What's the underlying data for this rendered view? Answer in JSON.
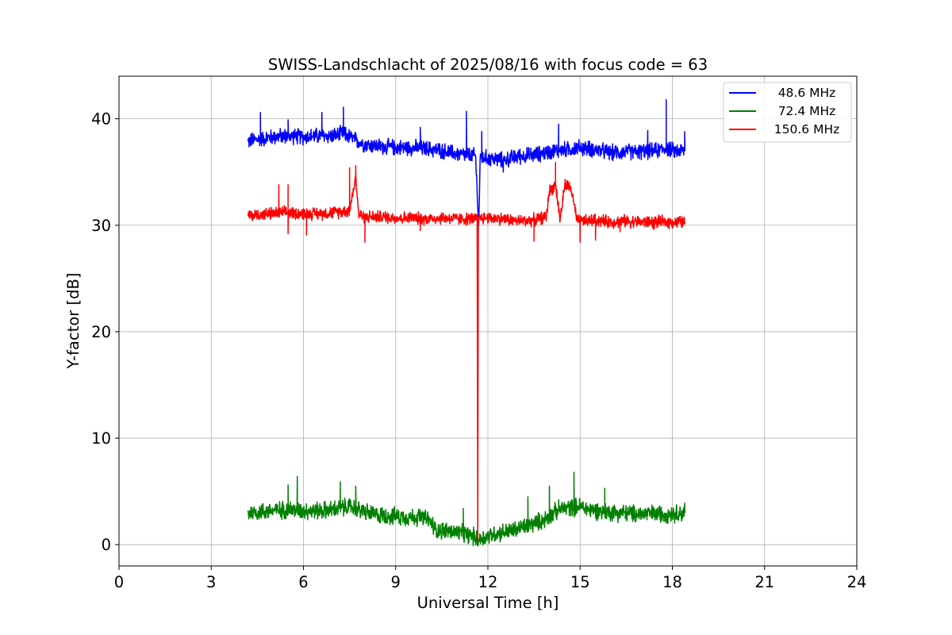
{
  "chart_data": {
    "type": "line",
    "title": "SWISS-Landschlacht of 2025/08/16 with focus code = 63",
    "xlabel": "Universal Time [h]",
    "ylabel": "Y-factor [dB]",
    "xlim": [
      0,
      24
    ],
    "ylim": [
      -2,
      44
    ],
    "xticks": [
      0,
      3,
      6,
      9,
      12,
      15,
      18,
      21,
      24
    ],
    "yticks": [
      0,
      10,
      20,
      30,
      40
    ],
    "xtick_labels": [
      "0",
      "3",
      "6",
      "9",
      "12",
      "15",
      "18",
      "21",
      "24"
    ],
    "ytick_labels": [
      "0",
      "10",
      "20",
      "30",
      "40"
    ],
    "grid": true,
    "legend": "top-right",
    "series": [
      {
        "name": "48.6 MHz",
        "color": "#0000ff",
        "x": [
          4.2,
          4.6,
          5.0,
          5.5,
          6.0,
          6.5,
          7.0,
          7.3,
          7.7,
          8.0,
          8.5,
          9.0,
          9.5,
          10.0,
          10.5,
          11.0,
          11.3,
          11.6,
          11.7,
          11.75,
          12.0,
          12.5,
          13.0,
          13.5,
          14.0,
          14.5,
          15.0,
          15.5,
          16.0,
          16.5,
          17.0,
          17.5,
          17.8,
          18.0,
          18.4
        ],
        "values": [
          37.9,
          38.1,
          38.3,
          38.4,
          38.3,
          38.4,
          38.4,
          38.6,
          38.0,
          37.6,
          37.4,
          37.3,
          37.3,
          37.2,
          37.0,
          36.7,
          36.6,
          36.5,
          30.0,
          36.4,
          36.3,
          36.1,
          36.5,
          36.6,
          36.9,
          37.1,
          37.3,
          37.1,
          36.8,
          36.9,
          36.9,
          37.0,
          37.3,
          37.0,
          37.0
        ],
        "spikes": [
          [
            4.6,
            40.6
          ],
          [
            5.5,
            39.9
          ],
          [
            6.6,
            40.6
          ],
          [
            7.3,
            41.1
          ],
          [
            9.8,
            39.2
          ],
          [
            11.3,
            40.7
          ],
          [
            11.8,
            38.8
          ],
          [
            12.5,
            35.0
          ],
          [
            14.3,
            39.5
          ],
          [
            17.2,
            38.9
          ],
          [
            17.8,
            41.8
          ],
          [
            18.4,
            38.8
          ]
        ],
        "noise": 0.9
      },
      {
        "name": "72.4 MHz",
        "color": "#008000",
        "x": [
          4.2,
          4.6,
          5.0,
          5.5,
          6.0,
          6.5,
          7.0,
          7.5,
          7.9,
          8.3,
          8.8,
          9.3,
          9.8,
          10.1,
          10.3,
          10.7,
          11.2,
          11.5,
          11.7,
          11.9,
          12.3,
          12.8,
          13.3,
          13.8,
          14.3,
          14.7,
          15.0,
          15.3,
          15.8,
          16.3,
          16.8,
          17.3,
          17.8,
          18.4
        ],
        "values": [
          3.0,
          3.1,
          3.2,
          3.3,
          3.2,
          3.2,
          3.3,
          3.6,
          3.2,
          2.8,
          2.7,
          2.6,
          2.6,
          2.3,
          1.4,
          1.3,
          1.0,
          0.8,
          0.5,
          0.7,
          1.1,
          1.3,
          1.8,
          2.3,
          3.3,
          3.5,
          3.6,
          3.3,
          3.1,
          3.0,
          2.9,
          2.9,
          2.9,
          3.0
        ],
        "spikes": [
          [
            5.5,
            5.6
          ],
          [
            5.8,
            6.4
          ],
          [
            7.2,
            5.9
          ],
          [
            7.7,
            5.5
          ],
          [
            11.2,
            3.4
          ],
          [
            13.3,
            4.5
          ],
          [
            14.0,
            5.5
          ],
          [
            14.8,
            6.8
          ],
          [
            15.8,
            5.3
          ],
          [
            18.4,
            3.9
          ]
        ],
        "noise": 1.0
      },
      {
        "name": "150.6 MHz",
        "color": "#ff0000",
        "x": [
          4.2,
          4.6,
          5.0,
          5.5,
          6.0,
          6.5,
          7.0,
          7.5,
          7.7,
          7.8,
          8.0,
          8.5,
          9.0,
          9.5,
          10.0,
          10.5,
          11.0,
          11.5,
          11.65,
          11.67,
          11.69,
          11.75,
          12.0,
          12.5,
          13.0,
          13.5,
          13.9,
          14.0,
          14.2,
          14.35,
          14.5,
          14.7,
          14.9,
          15.2,
          15.5,
          16.0,
          16.5,
          17.0,
          17.5,
          18.0,
          18.4
        ],
        "values": [
          30.9,
          31.0,
          31.1,
          31.2,
          31.1,
          31.1,
          31.2,
          31.4,
          34.5,
          31.0,
          30.8,
          30.8,
          30.7,
          30.7,
          30.6,
          30.7,
          30.6,
          30.6,
          30.6,
          0.3,
          30.6,
          30.7,
          30.7,
          30.6,
          30.4,
          30.5,
          30.8,
          33.2,
          33.8,
          30.5,
          33.8,
          33.5,
          30.4,
          30.4,
          30.5,
          30.3,
          30.4,
          30.3,
          30.3,
          30.3,
          30.3
        ],
        "spikes": [
          [
            5.2,
            33.8
          ],
          [
            5.5,
            33.8
          ],
          [
            5.5,
            29.2
          ],
          [
            6.1,
            29.1
          ],
          [
            7.5,
            35.4
          ],
          [
            7.7,
            35.6
          ],
          [
            8.0,
            28.4
          ],
          [
            9.8,
            29.5
          ],
          [
            13.5,
            28.5
          ],
          [
            14.2,
            35.9
          ],
          [
            15.0,
            28.4
          ],
          [
            15.5,
            28.6
          ],
          [
            16.3,
            29.4
          ],
          [
            17.4,
            29.6
          ]
        ],
        "noise": 0.7
      }
    ]
  }
}
